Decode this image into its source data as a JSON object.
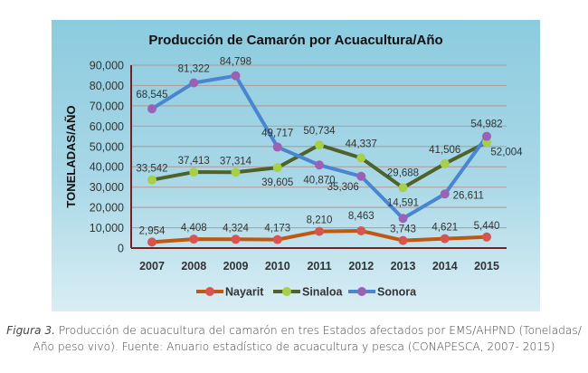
{
  "chart_data": {
    "type": "line",
    "title": "Producción de Camarón por Acuacultura/Año",
    "ylabel": "TONELADAS/AÑO",
    "xlabel": "",
    "categories": [
      "2007",
      "2008",
      "2009",
      "2010",
      "2011",
      "2012",
      "2013",
      "2014",
      "2015"
    ],
    "yticks": [
      "0",
      "10,000",
      "20,000",
      "30,000",
      "40,000",
      "50,000",
      "60,000",
      "70,000",
      "80,000",
      "90,000"
    ],
    "ylim": [
      0,
      90000
    ],
    "grid": true,
    "legend_position": "bottom",
    "series": [
      {
        "name": "Nayarit",
        "line_color": "#c0580f",
        "marker_color": "#d9534f",
        "values": [
          2954,
          4408,
          4324,
          4173,
          8210,
          8463,
          3743,
          4621,
          5440
        ],
        "labels": [
          "2,954",
          "4,408",
          "4,324",
          "4,173",
          "8,210",
          "8,463",
          "3,743",
          "4,621",
          "5,440"
        ]
      },
      {
        "name": "Sinaloa",
        "line_color": "#4f6228",
        "marker_color": "#a6cf4a",
        "values": [
          33542,
          37413,
          37314,
          39605,
          50734,
          44337,
          29688,
          41506,
          52004
        ],
        "labels": [
          "33,542",
          "37,413",
          "37,314",
          "39,605",
          "50,734",
          "44,337",
          "29,688",
          "41,506",
          "52,004"
        ]
      },
      {
        "name": "Sonora",
        "line_color": "#4a86d0",
        "marker_color": "#9a62b4",
        "values": [
          68545,
          81322,
          84798,
          49717,
          40870,
          35306,
          14591,
          26611,
          54982
        ],
        "labels": [
          "68,545",
          "81,322",
          "84,798",
          "49,717",
          "40,870",
          "35,306",
          "14,591",
          "26,611",
          "54,982"
        ]
      }
    ]
  },
  "caption": {
    "figure_label": "Figura 3.",
    "line1": " Producción de acuacultura del camarón en tres Estados afectados por EMS/AHPND (Toneladas/",
    "line2": "Año peso vivo). Fuente: Anuario estadístico de acuacultura y pesca (CONAPESCA, 2007- 2015)"
  }
}
